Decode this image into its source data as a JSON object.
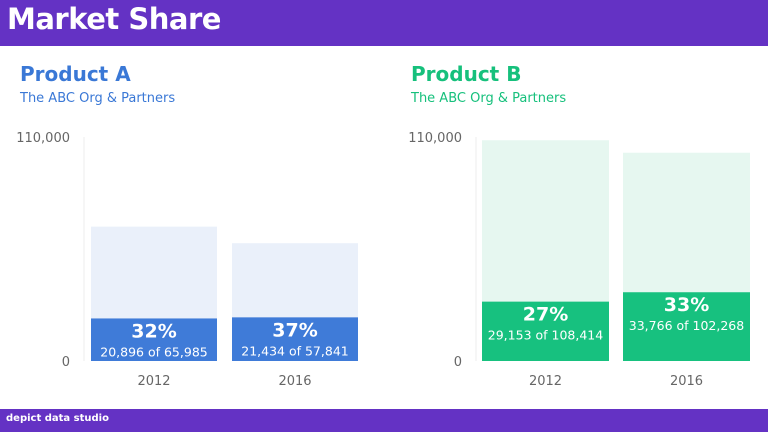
{
  "header": {
    "title": "Market Share"
  },
  "footer": {
    "brand": "depict data studio"
  },
  "chart_data": [
    {
      "type": "bar",
      "title": "Product A",
      "subtitle": "The ABC Org & Partners",
      "ylim": [
        0,
        110000
      ],
      "yticks": [
        "0",
        "110,000"
      ],
      "categories": [
        "2012",
        "2016"
      ],
      "totals": [
        65985,
        57841
      ],
      "values": [
        20896,
        21434
      ],
      "percent_labels": [
        "32%",
        "37%"
      ],
      "value_labels": [
        "20,896 of 65,985",
        "21,434 of 57,841"
      ],
      "colors": {
        "title": "#3a78d6",
        "bar": "#3f7bd8",
        "background_bar": "#eaf0fa"
      }
    },
    {
      "type": "bar",
      "title": "Product B",
      "subtitle": "The ABC Org & Partners",
      "ylim": [
        0,
        110000
      ],
      "yticks": [
        "0",
        "110,000"
      ],
      "categories": [
        "2012",
        "2016"
      ],
      "totals": [
        108414,
        102268
      ],
      "values": [
        29153,
        33766
      ],
      "percent_labels": [
        "27%",
        "33%"
      ],
      "value_labels": [
        "29,153 of 108,414",
        "33,766 of 102,268"
      ],
      "colors": {
        "title": "#16c07c",
        "bar": "#17c17f",
        "background_bar": "#e6f7f0"
      }
    }
  ]
}
